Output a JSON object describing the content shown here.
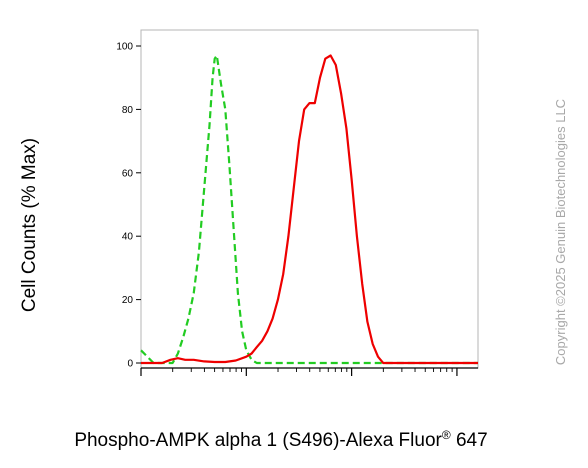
{
  "chart_data": {
    "type": "line",
    "ylabel": "Cell Counts (% Max)",
    "xlabel_main": "Phospho-AMPK alpha 1 (S496)-Alexa Fluor",
    "xlabel_sup": "®",
    "xlabel_tail": " 647",
    "x_scale": "log",
    "x_tick_labels": [],
    "ylim": [
      0,
      100
    ],
    "y_ticks": [
      0,
      20,
      40,
      60,
      80,
      100
    ],
    "y_tick_labels": [
      "0",
      "20",
      "40",
      "60",
      "80",
      "100"
    ],
    "series": [
      {
        "color": "#22cc22",
        "style": "dashed",
        "points": [
          [
            0.0,
            4
          ],
          [
            0.06,
            2
          ],
          [
            0.12,
            0
          ],
          [
            0.2,
            0
          ],
          [
            0.3,
            0
          ],
          [
            0.35,
            3
          ],
          [
            0.4,
            8
          ],
          [
            0.45,
            14
          ],
          [
            0.5,
            22
          ],
          [
            0.55,
            35
          ],
          [
            0.6,
            55
          ],
          [
            0.65,
            75
          ],
          [
            0.68,
            90
          ],
          [
            0.7,
            96
          ],
          [
            0.72,
            97
          ],
          [
            0.76,
            88
          ],
          [
            0.8,
            80
          ],
          [
            0.84,
            62
          ],
          [
            0.88,
            42
          ],
          [
            0.92,
            22
          ],
          [
            0.96,
            10
          ],
          [
            1.0,
            4
          ],
          [
            1.05,
            1
          ],
          [
            1.1,
            0
          ],
          [
            1.5,
            0
          ],
          [
            2.0,
            0
          ],
          [
            3.2,
            0
          ]
        ]
      },
      {
        "color": "#ee0000",
        "style": "solid",
        "points": [
          [
            0.0,
            0
          ],
          [
            0.1,
            0
          ],
          [
            0.2,
            0
          ],
          [
            0.28,
            1
          ],
          [
            0.35,
            1.5
          ],
          [
            0.42,
            1
          ],
          [
            0.5,
            1
          ],
          [
            0.6,
            0.5
          ],
          [
            0.7,
            0.3
          ],
          [
            0.8,
            0.3
          ],
          [
            0.9,
            0.8
          ],
          [
            1.0,
            2
          ],
          [
            1.05,
            3
          ],
          [
            1.1,
            5
          ],
          [
            1.15,
            7
          ],
          [
            1.2,
            10
          ],
          [
            1.25,
            14
          ],
          [
            1.3,
            20
          ],
          [
            1.35,
            28
          ],
          [
            1.4,
            40
          ],
          [
            1.45,
            55
          ],
          [
            1.5,
            70
          ],
          [
            1.55,
            80
          ],
          [
            1.6,
            82
          ],
          [
            1.65,
            82
          ],
          [
            1.7,
            90
          ],
          [
            1.75,
            96
          ],
          [
            1.8,
            97
          ],
          [
            1.85,
            94
          ],
          [
            1.9,
            85
          ],
          [
            1.95,
            74
          ],
          [
            2.0,
            58
          ],
          [
            2.05,
            40
          ],
          [
            2.1,
            25
          ],
          [
            2.15,
            13
          ],
          [
            2.2,
            6
          ],
          [
            2.25,
            2
          ],
          [
            2.3,
            0
          ],
          [
            2.5,
            0
          ],
          [
            3.2,
            0
          ]
        ]
      }
    ]
  },
  "copyright": "Copyright ©2025 Genuin Biotechnologies LLC"
}
